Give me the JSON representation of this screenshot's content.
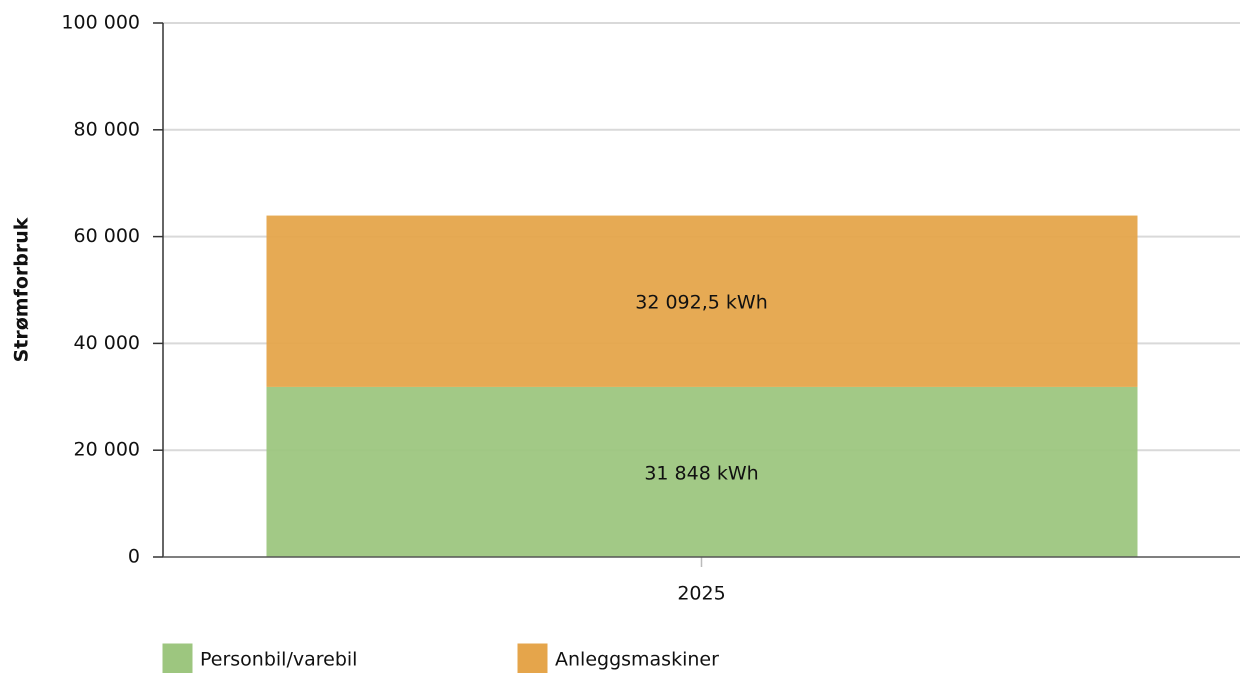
{
  "chart_data": {
    "type": "stacked-bar",
    "y_label": "Strømforbruk",
    "categories": [
      "2025"
    ],
    "series": [
      {
        "name": "Personbil/varebil",
        "color": "#9dc67f",
        "values": [
          31848
        ],
        "value_labels": [
          "31 848 kWh"
        ]
      },
      {
        "name": "Anleggsmaskiner",
        "color": "#e5a54b",
        "values": [
          32092.5
        ],
        "value_labels": [
          "32 092,5 kWh"
        ]
      }
    ],
    "ylim": [
      0,
      100000
    ],
    "yticks": [
      0,
      {
        "value": 20000,
        "label": "20 000"
      },
      {
        "value": 40000,
        "label": "40 000"
      },
      {
        "value": 60000,
        "label": "60 000"
      },
      {
        "value": 80000,
        "label": "80 000"
      },
      {
        "value": 100000,
        "label": "100 000"
      }
    ],
    "grid": true
  }
}
